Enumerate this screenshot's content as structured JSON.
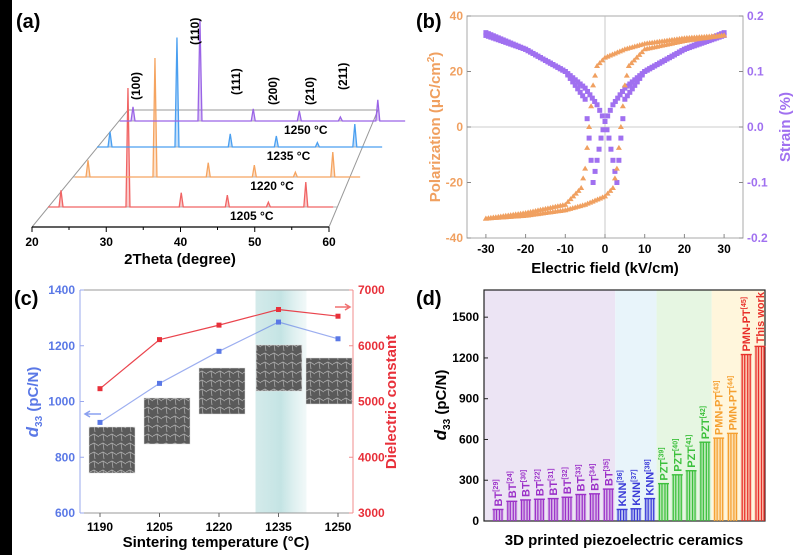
{
  "chart_data": [
    {
      "panel": "(a)",
      "type": "line",
      "xlabel": "2Theta (degree)",
      "xlim": [
        20,
        60
      ],
      "xticks": [
        "20",
        "30",
        "40",
        "50",
        "60"
      ],
      "series": [
        {
          "name": "1205 °C",
          "color": "#f06464",
          "scale": 1.0
        },
        {
          "name": "1220 °C",
          "color": "#f5a460",
          "scale": 1.0
        },
        {
          "name": "1235 °C",
          "color": "#4a9ff0",
          "scale": 0.92
        },
        {
          "name": "1250 °C",
          "color": "#9a64e6",
          "scale": 0.85
        }
      ],
      "peaks": [
        {
          "label": "(100)",
          "theta": 22.2,
          "rel_intensity": 0.14
        },
        {
          "label": "(110)",
          "theta": 31.5,
          "rel_intensity": 1.0
        },
        {
          "label": "(111)",
          "theta": 38.9,
          "rel_intensity": 0.12
        },
        {
          "label": "(200)",
          "theta": 45.3,
          "rel_intensity": 0.1
        },
        {
          "label": "(210)",
          "theta": 51.0,
          "rel_intensity": 0.04
        },
        {
          "label": "(211)",
          "theta": 56.2,
          "rel_intensity": 0.21
        }
      ]
    },
    {
      "panel": "(b)",
      "type": "scatter",
      "xlabel": "Electric field (kV/cm)",
      "ylabel_left": "Polarization (μC/cm",
      "ylabel_left_sup": "2",
      "ylabel_left_end": ")",
      "ylabel_right": "Strain (%)",
      "xlim": [
        -35,
        35
      ],
      "ylim_left": [
        -40,
        40
      ],
      "ylim_right": [
        -0.2,
        0.2
      ],
      "xticks": [
        "-30",
        "-20",
        "-10",
        "0",
        "10",
        "20",
        "30"
      ],
      "yticks_left": [
        "-40",
        "-20",
        "0",
        "20",
        "40"
      ],
      "yticks_right": [
        "-0.2",
        "-0.1",
        "0.0",
        "0.1",
        "0.2"
      ],
      "polarization": {
        "color": "#f0a060",
        "descending": {
          "E": [
            30,
            20,
            10,
            5,
            0,
            -2,
            -3,
            -4,
            -5,
            -6,
            -10,
            -20,
            -30
          ],
          "P": [
            33,
            32,
            30,
            28,
            25,
            22,
            15,
            0,
            -15,
            -22,
            -28,
            -31,
            -33
          ]
        }
      },
      "strain": {
        "color": "#a070f0",
        "descending": {
          "E": [
            30,
            20,
            10,
            5,
            2,
            0,
            -1,
            -2,
            -3,
            -4,
            -5,
            -10,
            -20,
            -30
          ],
          "S": [
            0.17,
            0.14,
            0.1,
            0.07,
            0.04,
            0.01,
            -0.02,
            -0.06,
            -0.1,
            -0.02,
            0.05,
            0.1,
            0.14,
            0.165
          ]
        }
      }
    },
    {
      "panel": "(c)",
      "type": "line",
      "xlabel": "Sintering temperature (°C)",
      "ylabel_left_main": "d",
      "ylabel_left_sub": "33",
      "ylabel_left_rest": " (pC/N)",
      "ylabel_right": "Dielectric constant",
      "categories": [
        "1190",
        "1205",
        "1220",
        "1235",
        "1250"
      ],
      "x": [
        1190,
        1205,
        1220,
        1235,
        1250
      ],
      "ylim_left": [
        600,
        1400
      ],
      "ylim_right": [
        3000,
        7000
      ],
      "yticks_left": [
        "600",
        "800",
        "1000",
        "1200",
        "1400"
      ],
      "yticks_right": [
        "3000",
        "4000",
        "5000",
        "6000",
        "7000"
      ],
      "highlight_x": 1235,
      "series": [
        {
          "axis": "left",
          "color": "#5a78e6",
          "values": [
            925,
            1065,
            1180,
            1285,
            1225
          ]
        },
        {
          "axis": "right",
          "color": "#e8303a",
          "values": [
            5230,
            6110,
            6370,
            6650,
            6530
          ]
        }
      ]
    },
    {
      "panel": "(d)",
      "type": "bar",
      "xlabel": "3D printed piezoelectric ceramics",
      "ylabel_main": "d",
      "ylabel_sub": "33",
      "ylabel_rest": " (pC/N)",
      "ylim": [
        0,
        1700
      ],
      "yticks": [
        "0",
        "300",
        "600",
        "900",
        "1200",
        "1500"
      ],
      "groups": [
        {
          "name": "BT",
          "color": "#9b30c8",
          "bg": "#ece4f4"
        },
        {
          "name": "KNN",
          "color": "#3c3cd8",
          "bg": "#e8f4fa"
        },
        {
          "name": "PZT",
          "color": "#3cc03c",
          "bg": "#e6f6e2"
        },
        {
          "name": "PMN-PT",
          "color": "#f5a030",
          "bg": "#fff6dc"
        },
        {
          "name": "PMN-PT*",
          "color": "#e8302a",
          "bg": "#fff6dc"
        }
      ],
      "bars": [
        {
          "label": "BT",
          "ref": "[29]",
          "group": 0,
          "value": 85
        },
        {
          "label": "BT",
          "ref": "[24]",
          "group": 0,
          "value": 145
        },
        {
          "label": "BT",
          "ref": "[30]",
          "group": 0,
          "value": 155
        },
        {
          "label": "BT",
          "ref": "[22]",
          "group": 0,
          "value": 160
        },
        {
          "label": "BT",
          "ref": "[31]",
          "group": 0,
          "value": 165
        },
        {
          "label": "BT",
          "ref": "[32]",
          "group": 0,
          "value": 175
        },
        {
          "label": "BT",
          "ref": "[33]",
          "group": 0,
          "value": 195
        },
        {
          "label": "BT",
          "ref": "[34]",
          "group": 0,
          "value": 200
        },
        {
          "label": "BT",
          "ref": "[35]",
          "group": 0,
          "value": 235
        },
        {
          "label": "KNN",
          "ref": "[36]",
          "group": 1,
          "value": 85
        },
        {
          "label": "KNN",
          "ref": "[37]",
          "group": 1,
          "value": 90
        },
        {
          "label": "KNN",
          "ref": "[38]",
          "group": 1,
          "value": 165
        },
        {
          "label": "PZT",
          "ref": "[39]",
          "group": 2,
          "value": 275
        },
        {
          "label": "PZT",
          "ref": "[40]",
          "group": 2,
          "value": 340
        },
        {
          "label": "PZT",
          "ref": "[41]",
          "group": 2,
          "value": 370
        },
        {
          "label": "PZT",
          "ref": "[42]",
          "group": 2,
          "value": 580
        },
        {
          "label": "PMN-PT",
          "ref": "[43]",
          "group": 3,
          "value": 610
        },
        {
          "label": "PMN-PT",
          "ref": "[44]",
          "group": 3,
          "value": 645
        },
        {
          "label": "PMN-PT",
          "ref": "[45]",
          "group": 4,
          "value": 1225
        },
        {
          "label": "This work",
          "ref": "",
          "group": 4,
          "value": 1285
        }
      ]
    }
  ]
}
